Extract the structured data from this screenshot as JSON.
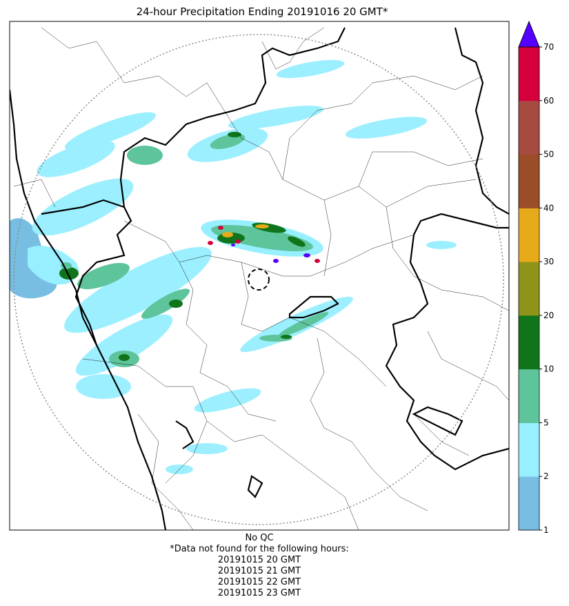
{
  "title": "24-hour Precipitation Ending 20191016 20 GMT*",
  "colorbar": {
    "bins": [
      {
        "from": 1,
        "to": 2,
        "color": "#78bee2"
      },
      {
        "from": 2,
        "to": 5,
        "color": "#97efff"
      },
      {
        "from": 5,
        "to": 10,
        "color": "#5dc49b"
      },
      {
        "from": 10,
        "to": 20,
        "color": "#0f741a"
      },
      {
        "from": 20,
        "to": 30,
        "color": "#8e9419"
      },
      {
        "from": 30,
        "to": 40,
        "color": "#e6aa1a"
      },
      {
        "from": 40,
        "to": 50,
        "color": "#9a4d28"
      },
      {
        "from": 50,
        "to": 60,
        "color": "#a64b41"
      },
      {
        "from": 60,
        "to": 70,
        "color": "#d4003e"
      }
    ],
    "over_color": "#5500ff",
    "tick_labels": [
      "1",
      "2",
      "5",
      "10",
      "20",
      "30",
      "40",
      "50",
      "60",
      "70"
    ]
  },
  "notes": {
    "qc": "No QC",
    "missing_header": "*Data not found for the following hours:",
    "missing_hours": [
      "20191015 20 GMT",
      "20191015 21 GMT",
      "20191015 22 GMT",
      "20191015 23 GMT"
    ]
  }
}
